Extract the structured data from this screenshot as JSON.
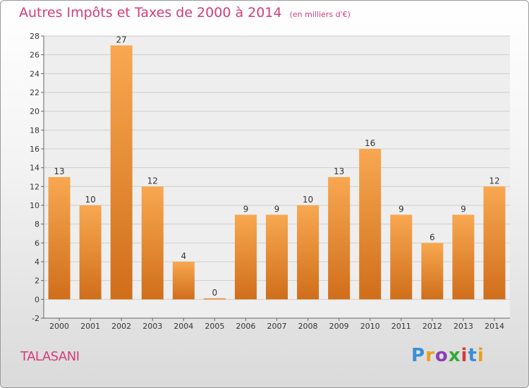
{
  "header": {
    "title": "Autres Impôts et Taxes de 2000 à 2014",
    "subtitle": "(en milliers d'€)"
  },
  "footer": {
    "city": "TALASANI",
    "logo": "Proxiti",
    "logo_colors": [
      "#3a8fd6",
      "#e8a020",
      "#8a3fb0",
      "#3aa83a",
      "#d23c3c",
      "#3a8fd6",
      "#e8a020"
    ]
  },
  "colors": {
    "title": "#d23c7a",
    "bar_top": "#f8a851",
    "bar_bottom": "#d06e1a"
  },
  "chart_data": {
    "type": "bar",
    "categories": [
      "2000",
      "2001",
      "2002",
      "2003",
      "2004",
      "2005",
      "2006",
      "2007",
      "2008",
      "2009",
      "2010",
      "2011",
      "2012",
      "2013",
      "2014"
    ],
    "values": [
      13,
      10,
      27,
      12,
      4,
      0,
      9,
      9,
      10,
      13,
      16,
      9,
      6,
      9,
      12
    ],
    "data_labels": [
      "13",
      "10",
      "27",
      "12",
      "4",
      "0",
      "9",
      "9",
      "10",
      "13",
      "16",
      "9",
      "6",
      "9",
      "12"
    ],
    "yticks": [
      -2,
      0,
      2,
      4,
      6,
      8,
      10,
      12,
      14,
      16,
      18,
      20,
      22,
      24,
      26,
      28
    ],
    "ylim": [
      -2,
      28
    ],
    "title": "Autres Impôts et Taxes de 2000 à 2014",
    "xlabel": "",
    "ylabel": "",
    "grid": true
  }
}
